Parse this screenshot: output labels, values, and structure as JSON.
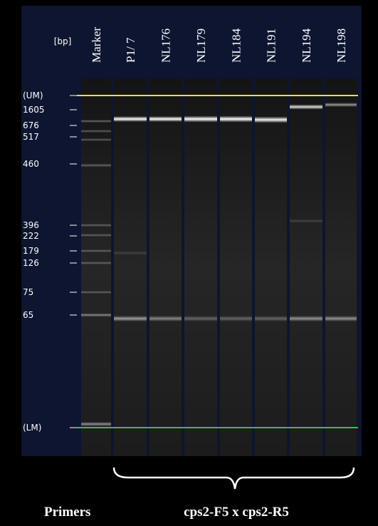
{
  "header": {
    "unit": "[bp]"
  },
  "lanes": [
    "Marker",
    "P1/ 7",
    "NL176",
    "NL179",
    "NL184",
    "NL191",
    "NL194",
    "NL198"
  ],
  "markers": [
    "(UM)",
    "1605",
    "676",
    "517",
    "460",
    "396",
    "222",
    "179",
    "126",
    "75",
    "65",
    "(LM)"
  ],
  "footer": {
    "label": "Primers",
    "primers": "cps2-F5 x cps2-R5"
  }
}
